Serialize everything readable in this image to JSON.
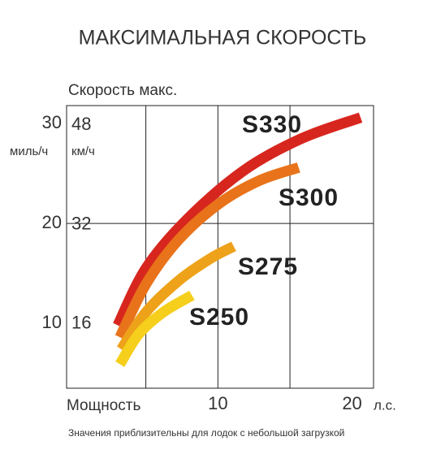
{
  "chart_data": {
    "type": "line",
    "title": "МАКСИМАЛЬНАЯ СКОРОСТЬ",
    "y_label": "Скорость макс.",
    "y_unit": "миль/ч",
    "y2_unit": "км/ч",
    "x_label": "Мощность",
    "x_unit": "л.с.",
    "footnote": "Значения приблизительны для лодок с небольшой загрузкой",
    "xlim": [
      -0.5,
      20.8
    ],
    "xticks": [
      10,
      20
    ],
    "xgrid": [
      5,
      10,
      15
    ],
    "ylim": [
      3.5,
      31.8
    ],
    "yticks": [
      10,
      20,
      30
    ],
    "ygrid": [
      20
    ],
    "y2lim": [
      5.6,
      51.2
    ],
    "y2ticks": [
      16,
      32,
      48
    ],
    "series": [
      {
        "name": "S330",
        "color": "#d7261e",
        "x": [
          3.05,
          5.0,
          7.85,
          11.8,
          15.8,
          19.9
        ],
        "values": [
          9.8,
          15.5,
          20.4,
          25.3,
          28.5,
          30.6
        ]
      },
      {
        "name": "S300",
        "color": "#e8731a",
        "x": [
          3.2,
          5.0,
          7.3,
          10.1,
          12.9,
          15.6
        ],
        "values": [
          8.6,
          13.9,
          18.4,
          22.0,
          24.3,
          25.6
        ]
      },
      {
        "name": "S275",
        "color": "#eea21a",
        "x": [
          3.3,
          5.0,
          7.3,
          9.5,
          11.1
        ],
        "values": [
          7.4,
          11.1,
          14.3,
          16.5,
          17.7
        ]
      },
      {
        "name": "S250",
        "color": "#f5cf1c",
        "x": [
          3.2,
          4.5,
          6.2,
          8.2
        ],
        "values": [
          5.9,
          8.9,
          11.1,
          12.8
        ]
      }
    ]
  }
}
